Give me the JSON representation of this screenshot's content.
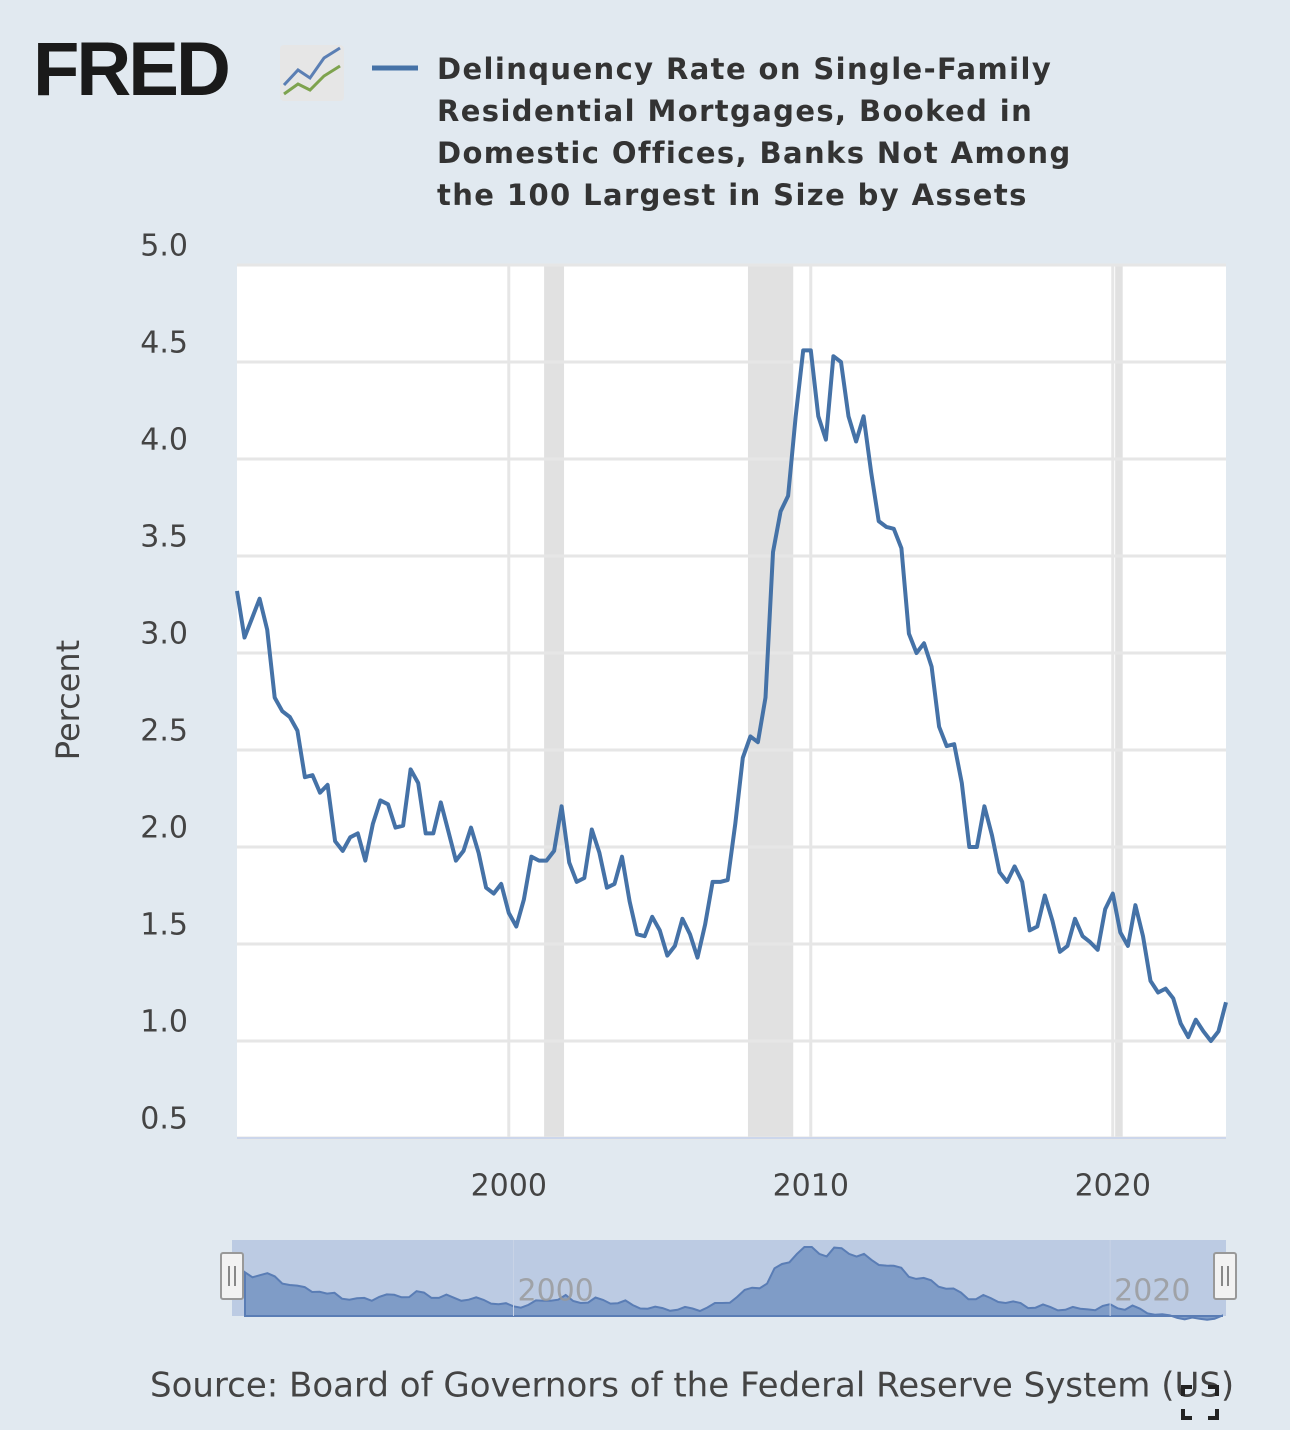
{
  "logo": "FRED",
  "chart_data": {
    "type": "line",
    "series": [
      {
        "name": "Delinquency Rate on Single-Family Residential Mortgages, Booked in Domestic Offices, Banks Not Among the 100 Largest in Size by Assets",
        "color": "#4572a7",
        "values": [
          3.32,
          3.08,
          3.18,
          3.28,
          3.12,
          2.77,
          2.7,
          2.67,
          2.6,
          2.36,
          2.37,
          2.28,
          2.32,
          2.03,
          1.98,
          2.05,
          2.07,
          1.93,
          2.12,
          2.24,
          2.22,
          2.1,
          2.11,
          2.4,
          2.33,
          2.07,
          2.07,
          2.23,
          2.08,
          1.93,
          1.98,
          2.1,
          1.97,
          1.79,
          1.76,
          1.81,
          1.66,
          1.59,
          1.73,
          1.95,
          1.93,
          1.93,
          1.98,
          2.21,
          1.92,
          1.82,
          1.84,
          2.09,
          1.97,
          1.79,
          1.81,
          1.95,
          1.72,
          1.55,
          1.54,
          1.64,
          1.57,
          1.44,
          1.49,
          1.63,
          1.55,
          1.43,
          1.6,
          1.82,
          1.82,
          1.83,
          2.12,
          2.46,
          2.57,
          2.54,
          2.77,
          3.52,
          3.73,
          3.81,
          4.22,
          4.56,
          4.56,
          4.22,
          4.1,
          4.53,
          4.5,
          4.22,
          4.09,
          4.22,
          3.93,
          3.68,
          3.65,
          3.64,
          3.54,
          3.1,
          3.0,
          3.05,
          2.93,
          2.62,
          2.52,
          2.53,
          2.33,
          2.0,
          2.0,
          2.21,
          2.06,
          1.87,
          1.82,
          1.9,
          1.82,
          1.57,
          1.59,
          1.75,
          1.62,
          1.46,
          1.49,
          1.63,
          1.54,
          1.51,
          1.47,
          1.68,
          1.76,
          1.56,
          1.49,
          1.7,
          1.54,
          1.31,
          1.25,
          1.27,
          1.22,
          1.09,
          1.02,
          1.11,
          1.05,
          1.0,
          1.05,
          1.2
        ]
      }
    ],
    "x": [
      1991,
      1991.25,
      1991.5,
      1991.75,
      1992,
      1992.25,
      1992.5,
      1992.75,
      1993,
      1993.25,
      1993.5,
      1993.75,
      1994,
      1994.25,
      1994.5,
      1994.75,
      1995,
      1995.25,
      1995.5,
      1995.75,
      1996,
      1996.25,
      1996.5,
      1996.75,
      1997,
      1997.25,
      1997.5,
      1997.75,
      1998,
      1998.25,
      1998.5,
      1998.75,
      1999,
      1999.25,
      1999.5,
      1999.75,
      2000,
      2000.25,
      2000.5,
      2000.75,
      2001,
      2001.25,
      2001.5,
      2001.75,
      2002,
      2002.25,
      2002.5,
      2002.75,
      2003,
      2003.25,
      2003.5,
      2003.75,
      2004,
      2004.25,
      2004.5,
      2004.75,
      2005,
      2005.25,
      2005.5,
      2005.75,
      2006,
      2006.25,
      2006.5,
      2006.75,
      2007,
      2007.25,
      2007.5,
      2007.75,
      2008,
      2008.25,
      2008.5,
      2008.75,
      2009,
      2009.25,
      2009.5,
      2009.75,
      2010,
      2010.25,
      2010.5,
      2010.75,
      2011,
      2011.25,
      2011.5,
      2011.75,
      2012,
      2012.25,
      2012.5,
      2012.75,
      2013,
      2013.25,
      2013.5,
      2013.75,
      2014,
      2014.25,
      2014.5,
      2014.75,
      2015,
      2015.25,
      2015.5,
      2015.75,
      2016,
      2016.25,
      2016.5,
      2016.75,
      2017,
      2017.25,
      2017.5,
      2017.75,
      2018,
      2018.25,
      2018.5,
      2018.75,
      2019,
      2019.25,
      2019.5,
      2019.75,
      2020,
      2020.25,
      2020.5,
      2020.75,
      2021,
      2021.25,
      2021.5,
      2021.75,
      2022,
      2022.25,
      2022.5,
      2022.75,
      2023,
      2023.25,
      2023.5,
      2023.75
    ],
    "xlim": [
      1991,
      2023.75
    ],
    "xticks": [
      2000,
      2010,
      2020
    ],
    "ylim": [
      0.5,
      5.0
    ],
    "yticks": [
      {
        "value": 0.5,
        "label": "0.5"
      },
      {
        "value": 1,
        "label": "1.0"
      },
      {
        "value": 1.5,
        "label": "1.5"
      },
      {
        "value": 2,
        "label": "2.0"
      },
      {
        "value": 2.5,
        "label": "2.5"
      },
      {
        "value": 3,
        "label": "3.0"
      },
      {
        "value": 3.5,
        "label": "3.5"
      },
      {
        "value": 4,
        "label": "4.0"
      },
      {
        "value": 4.5,
        "label": "4.5"
      },
      {
        "value": 5,
        "label": "5.0"
      }
    ],
    "ylabel": "Percent",
    "grid": true,
    "recessions": [
      [
        2001.17,
        2001.83
      ],
      [
        2007.92,
        2009.42
      ],
      [
        2020.08,
        2020.33
      ]
    ],
    "source": "Source: Board of Governors of the Federal Reserve System (US)"
  }
}
